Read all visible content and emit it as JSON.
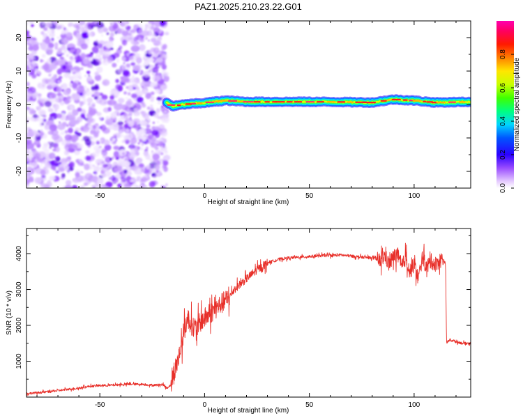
{
  "title": "PAZ1.2025.210.23.22.G01",
  "chart_data": [
    {
      "type": "heatmap",
      "title": "PAZ1.2025.210.23.22.G01",
      "xlabel": "Height of straight line (km)",
      "ylabel": "Frequency (Hz)",
      "xlim": [
        -85,
        127
      ],
      "ylim": [
        -25,
        25
      ],
      "x_ticks": [
        -50,
        0,
        50,
        100
      ],
      "y_ticks": [
        -20,
        -10,
        0,
        10,
        20
      ],
      "noise_region_x": [
        -85,
        -18
      ],
      "signal_band_frequency_hz": 0.8,
      "signal_band_center": [
        {
          "x": -18,
          "y": 0.5
        },
        {
          "x": -15,
          "y": -0.5
        },
        {
          "x": -10,
          "y": 0.0
        },
        {
          "x": 0,
          "y": 0.5
        },
        {
          "x": 10,
          "y": 1.2
        },
        {
          "x": 20,
          "y": 0.8
        },
        {
          "x": 40,
          "y": 0.8
        },
        {
          "x": 60,
          "y": 0.8
        },
        {
          "x": 80,
          "y": 0.6
        },
        {
          "x": 90,
          "y": 1.5
        },
        {
          "x": 100,
          "y": 1.2
        },
        {
          "x": 110,
          "y": 0.6
        },
        {
          "x": 127,
          "y": 0.8
        }
      ],
      "grid": false,
      "colorbar": {
        "label": "Normalized spectral amplitude",
        "min": 0.0,
        "max": 1.0,
        "ticks": [
          "0.0",
          "0.2",
          "0.4",
          "0.6",
          "0.8"
        ]
      }
    },
    {
      "type": "line",
      "xlabel": "Height of straight line (km)",
      "ylabel": "SNR (10 * v/v)",
      "xlim": [
        -85,
        127
      ],
      "ylim": [
        0,
        4700
      ],
      "x_ticks": [
        -50,
        0,
        50,
        100
      ],
      "y_ticks": [
        1000,
        2000,
        3000,
        4000
      ],
      "color": "#e8302a",
      "grid": false,
      "series": [
        {
          "x": [
            -85,
            -80,
            -75,
            -70,
            -65,
            -60,
            -55,
            -50,
            -45,
            -40,
            -35,
            -30,
            -25,
            -20,
            -18,
            -16,
            -14,
            -12,
            -10,
            -8,
            -6,
            -4,
            -2,
            0,
            2,
            4,
            6,
            8,
            10,
            12,
            14,
            16,
            18,
            20,
            22,
            25,
            28,
            30,
            33,
            36,
            40,
            45,
            50,
            55,
            60,
            65,
            70,
            75,
            80,
            84,
            86,
            88,
            90,
            92,
            94,
            96,
            98,
            100,
            102,
            104,
            106,
            108,
            110,
            112,
            114,
            115,
            115.5,
            117,
            120,
            123,
            127
          ],
          "y": [
            100,
            120,
            150,
            180,
            220,
            250,
            300,
            320,
            330,
            350,
            360,
            360,
            330,
            350,
            250,
            350,
            800,
            1200,
            1800,
            2200,
            2000,
            1900,
            2100,
            2200,
            2300,
            2400,
            2500,
            2600,
            2700,
            2800,
            3000,
            3100,
            3200,
            3300,
            3400,
            3550,
            3650,
            3750,
            3800,
            3850,
            3880,
            3900,
            3920,
            3940,
            3950,
            3960,
            3930,
            3900,
            3880,
            3800,
            3950,
            3700,
            3900,
            4000,
            3600,
            3900,
            3500,
            3700,
            3300,
            3900,
            3600,
            3800,
            3700,
            3800,
            3850,
            3700,
            1500,
            1600,
            1550,
            1500,
            1500
          ]
        }
      ]
    }
  ]
}
